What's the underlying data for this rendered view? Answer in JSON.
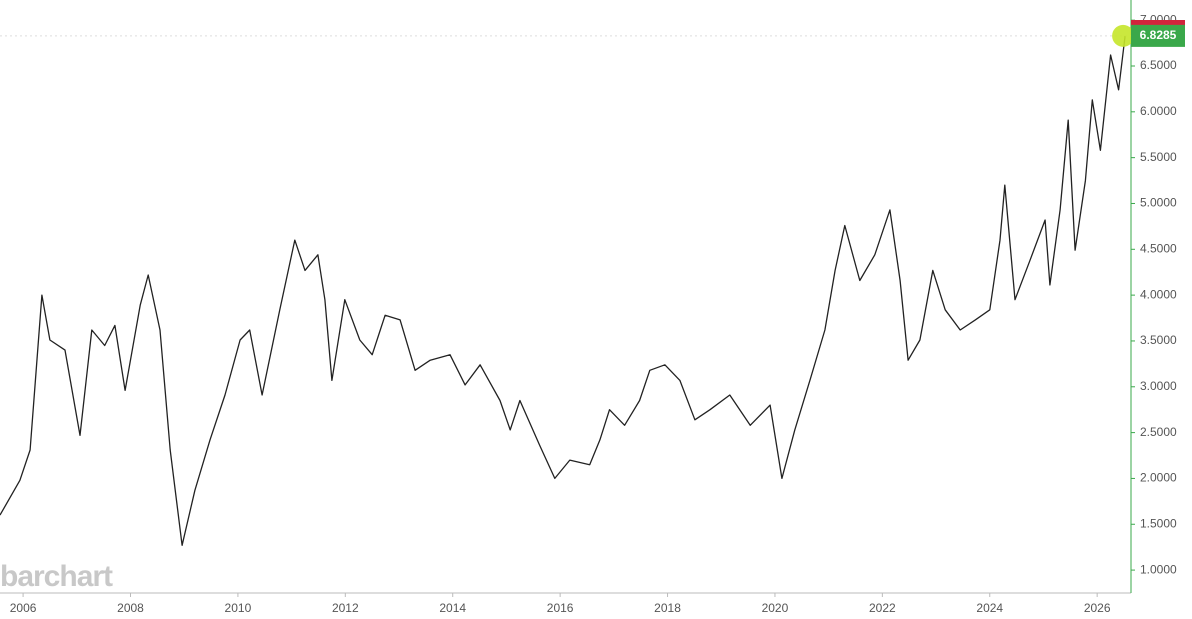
{
  "chart_data": {
    "type": "line",
    "watermark": "barchart",
    "last_price": 6.8285,
    "axis_color": "#3aa84a",
    "x": [
      2005.57,
      2005.94,
      2006.13,
      2006.35,
      2006.5,
      2006.78,
      2007.06,
      2007.28,
      2007.52,
      2007.71,
      2007.9,
      2008.18,
      2008.33,
      2008.55,
      2008.74,
      2008.96,
      2009.2,
      2009.48,
      2009.76,
      2010.04,
      2010.22,
      2010.45,
      2010.78,
      2011.06,
      2011.25,
      2011.49,
      2011.62,
      2011.75,
      2011.99,
      2012.27,
      2012.5,
      2012.74,
      2013.02,
      2013.3,
      2013.58,
      2013.95,
      2014.23,
      2014.51,
      2014.88,
      2015.07,
      2015.25,
      2015.62,
      2015.9,
      2016.18,
      2016.55,
      2016.74,
      2016.92,
      2017.2,
      2017.48,
      2017.67,
      2017.95,
      2018.23,
      2018.51,
      2018.79,
      2019.16,
      2019.54,
      2019.91,
      2020.13,
      2020.37,
      2020.65,
      2020.93,
      2021.12,
      2021.3,
      2021.58,
      2021.86,
      2022.14,
      2022.33,
      2022.48,
      2022.7,
      2022.94,
      2023.17,
      2023.45,
      2023.73,
      2024.0,
      2024.19,
      2024.28,
      2024.47,
      2024.75,
      2025.03,
      2025.12,
      2025.31,
      2025.46,
      2025.59,
      2025.78,
      2025.91,
      2026.06,
      2026.25,
      2026.4,
      2026.52
    ],
    "series": [
      {
        "color": "#222222",
        "values": [
          1.6,
          1.98,
          2.31,
          4.0,
          3.51,
          3.4,
          2.47,
          3.62,
          3.45,
          3.67,
          2.96,
          3.89,
          4.22,
          3.62,
          2.31,
          1.27,
          1.87,
          2.42,
          2.91,
          3.51,
          3.62,
          2.91,
          3.84,
          4.6,
          4.27,
          4.44,
          3.95,
          3.07,
          3.95,
          3.51,
          3.35,
          3.78,
          3.73,
          3.18,
          3.29,
          3.35,
          3.02,
          3.24,
          2.85,
          2.53,
          2.85,
          2.36,
          2.0,
          2.2,
          2.15,
          2.42,
          2.75,
          2.58,
          2.85,
          3.18,
          3.24,
          3.07,
          2.64,
          2.75,
          2.91,
          2.58,
          2.8,
          2.0,
          2.53,
          3.07,
          3.62,
          4.27,
          4.76,
          4.16,
          4.44,
          4.93,
          4.16,
          3.29,
          3.51,
          4.27,
          3.84,
          3.62,
          3.73,
          3.84,
          4.6,
          5.2,
          3.95,
          4.38,
          4.82,
          4.11,
          4.93,
          5.91,
          4.49,
          5.25,
          6.13,
          5.58,
          6.62,
          6.24,
          6.8285
        ]
      }
    ],
    "xlim": [
      2005.57,
      2026.63
    ],
    "ylim": [
      0.75,
      7.22
    ],
    "xticks": [
      2006,
      2008,
      2010,
      2012,
      2014,
      2016,
      2018,
      2020,
      2022,
      2024,
      2026
    ],
    "yticks": [
      {
        "value": 1,
        "label": "1.0000"
      },
      {
        "value": 1.5,
        "label": "1.5000"
      },
      {
        "value": 2,
        "label": "2.0000"
      },
      {
        "value": 2.5,
        "label": "2.5000"
      },
      {
        "value": 3,
        "label": "3.0000"
      },
      {
        "value": 3.5,
        "label": "3.5000"
      },
      {
        "value": 4,
        "label": "4.0000"
      },
      {
        "value": 4.5,
        "label": "4.5000"
      },
      {
        "value": 5,
        "label": "5.0000"
      },
      {
        "value": 5.5,
        "label": "5.5000"
      },
      {
        "value": 6,
        "label": "6.0000"
      },
      {
        "value": 6.5,
        "label": "6.5000"
      },
      {
        "value": 7,
        "label": "7.0000"
      }
    ]
  }
}
